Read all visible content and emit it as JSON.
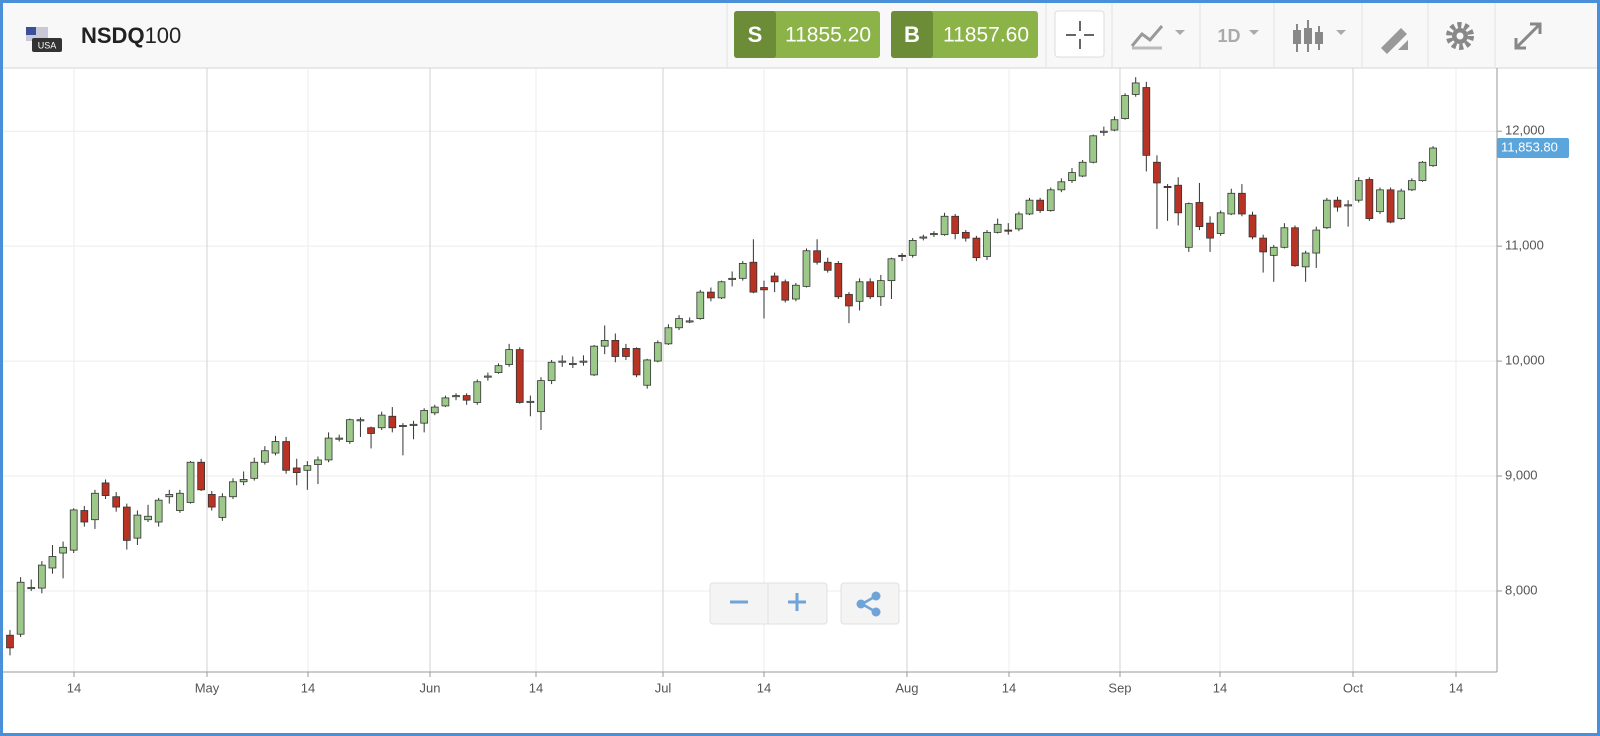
{
  "header": {
    "flag_label": "USA",
    "symbol_prefix": "NSDQ",
    "symbol_suffix": "100",
    "sell": {
      "label": "S",
      "price": "11855.20"
    },
    "buy": {
      "label": "B",
      "price": "11857.60"
    },
    "interval": "1D"
  },
  "chart_data": {
    "type": "candlestick",
    "up_color": "#9cc98a",
    "down_color": "#b83324",
    "grid": true,
    "categories": [
      null,
      null,
      null,
      null,
      null,
      null,
      null,
      null,
      null,
      null,
      null,
      null,
      null,
      null,
      null,
      null,
      null,
      null,
      null,
      null,
      null,
      null,
      null,
      null,
      null,
      null,
      null,
      null,
      null,
      null,
      null,
      null,
      null,
      null,
      null,
      null,
      null,
      null,
      null,
      null,
      null,
      null,
      null,
      null,
      null,
      null,
      null,
      null,
      null,
      null,
      null,
      null,
      null,
      null,
      null,
      null,
      null,
      null,
      null,
      null,
      null,
      null,
      null,
      null,
      null,
      null,
      null,
      null,
      null,
      null,
      null,
      null,
      null,
      null,
      null,
      null,
      null,
      null,
      null,
      null,
      null,
      null,
      null,
      null,
      null,
      null,
      null,
      null,
      null,
      null,
      null,
      null,
      null,
      null,
      null,
      null,
      null,
      null,
      null,
      null,
      null,
      null,
      null,
      null,
      null,
      null,
      null,
      null,
      null,
      null,
      null,
      null,
      null,
      null,
      null,
      null,
      null,
      null,
      null,
      null,
      null,
      null,
      null,
      null,
      null,
      null,
      null,
      null,
      null,
      null,
      null,
      null,
      null,
      null,
      null
    ],
    "open": [
      7615,
      7624,
      8020,
      8025,
      8200,
      8330,
      8355,
      8700,
      8620,
      8940,
      8820,
      8730,
      8460,
      8620,
      8600,
      8820,
      8700,
      8770,
      9120,
      8840,
      8640,
      8820,
      8950,
      8980,
      9120,
      9200,
      9300,
      9070,
      9050,
      9100,
      9140,
      9320,
      9300,
      9480,
      9420,
      9420,
      9520,
      9430,
      9440,
      9460,
      9550,
      9610,
      9690,
      9700,
      9640,
      9860,
      9900,
      9970,
      10100,
      9640,
      9560,
      9830,
      9990,
      9970,
      9990,
      9880,
      10130,
      10180,
      10110,
      10110,
      9790,
      10000,
      10150,
      10290,
      10340,
      10370,
      10600,
      10550,
      10710,
      10720,
      10860,
      10640,
      10740,
      10690,
      10540,
      10650,
      10960,
      10860,
      10850,
      10580,
      10520,
      10690,
      10560,
      10700,
      10920,
      10920,
      11070,
      11100,
      11100,
      11260,
      11120,
      11070,
      10910,
      11120,
      11140,
      11150,
      11280,
      11400,
      11310,
      11490,
      11570,
      11610,
      11730,
      11990,
      12010,
      12110,
      12320,
      12380,
      11730,
      11520,
      11530,
      10990,
      11380,
      11200,
      11110,
      11280,
      11460,
      11270,
      11070,
      10920,
      10990,
      11160,
      10820,
      10940,
      11160,
      11400,
      11350,
      11400,
      11580,
      11300,
      11490,
      11240,
      11490,
      11570,
      11700
    ],
    "high": [
      7660,
      8120,
      8100,
      8260,
      8400,
      8430,
      8720,
      8740,
      8880,
      8970,
      8860,
      8760,
      8700,
      8750,
      8810,
      8880,
      8880,
      9130,
      9150,
      8870,
      8850,
      8980,
      9040,
      9160,
      9260,
      9350,
      9340,
      9150,
      9130,
      9170,
      9380,
      9360,
      9500,
      9510,
      9430,
      9560,
      9600,
      9460,
      9480,
      9590,
      9620,
      9700,
      9720,
      9720,
      9840,
      9900,
      9980,
      10150,
      10120,
      9700,
      9860,
      10010,
      10050,
      10040,
      10050,
      10140,
      10310,
      10240,
      10150,
      10120,
      10020,
      10180,
      10320,
      10400,
      10380,
      10620,
      10640,
      10700,
      10780,
      10870,
      11060,
      10700,
      10770,
      10710,
      10680,
      10980,
      11060,
      10900,
      10870,
      10600,
      10720,
      10720,
      10750,
      10900,
      10940,
      11070,
      11100,
      11130,
      11290,
      11280,
      11140,
      11090,
      11140,
      11240,
      11200,
      11300,
      11420,
      11420,
      11510,
      11590,
      11680,
      11750,
      11970,
      12040,
      12130,
      12330,
      12470,
      12430,
      11790,
      11540,
      11600,
      11380,
      11550,
      11260,
      11310,
      11500,
      11540,
      11300,
      11100,
      11010,
      11200,
      11180,
      10960,
      11170,
      11420,
      11430,
      11400,
      11600,
      11600,
      11510,
      11510,
      11500,
      11590,
      11740,
      11870
    ],
    "low": [
      7440,
      7600,
      8000,
      7980,
      8150,
      8110,
      8330,
      8560,
      8540,
      8800,
      8690,
      8360,
      8400,
      8600,
      8560,
      8760,
      8680,
      8760,
      8870,
      8700,
      8610,
      8800,
      8920,
      8960,
      9100,
      9180,
      9020,
      8920,
      8880,
      8930,
      9120,
      9300,
      9280,
      9340,
      9240,
      9400,
      9380,
      9180,
      9320,
      9380,
      9530,
      9600,
      9660,
      9620,
      9620,
      9830,
      9890,
      9950,
      9630,
      9520,
      9400,
      9800,
      9950,
      9940,
      9960,
      9870,
      10060,
      9990,
      10010,
      9860,
      9760,
      9990,
      10140,
      10270,
      10330,
      10360,
      10520,
      10540,
      10650,
      10700,
      10590,
      10370,
      10600,
      10510,
      10520,
      10640,
      10840,
      10770,
      10540,
      10330,
      10440,
      10540,
      10480,
      10540,
      10870,
      10900,
      11050,
      11080,
      11090,
      11060,
      11040,
      10870,
      10880,
      11110,
      11100,
      11130,
      11270,
      11290,
      11300,
      11470,
      11550,
      11600,
      11720,
      11960,
      12000,
      12100,
      12300,
      11650,
      11150,
      11220,
      11180,
      10950,
      11140,
      10950,
      11090,
      11270,
      11260,
      11060,
      10770,
      10690,
      10980,
      10820,
      10690,
      10810,
      11150,
      11300,
      11170,
      11380,
      11220,
      11280,
      11200,
      11230,
      11480,
      11560,
      11690
    ],
    "close": [
      7505,
      8076,
      8030,
      8225,
      8300,
      8380,
      8705,
      8600,
      8850,
      8830,
      8730,
      8440,
      8660,
      8650,
      8790,
      8840,
      8850,
      9120,
      8880,
      8730,
      8820,
      8950,
      8970,
      9120,
      9220,
      9300,
      9050,
      9030,
      9090,
      9140,
      9330,
      9330,
      9490,
      9490,
      9370,
      9530,
      9420,
      9440,
      9450,
      9570,
      9600,
      9680,
      9700,
      9660,
      9820,
      9870,
      9960,
      10100,
      9640,
      9650,
      9830,
      9990,
      10000,
      9980,
      10000,
      10130,
      10180,
      10040,
      10040,
      9880,
      10010,
      10160,
      10290,
      10370,
      10350,
      10600,
      10550,
      10690,
      10720,
      10850,
      10600,
      10620,
      10690,
      10530,
      10660,
      10960,
      10860,
      10790,
      10560,
      10480,
      10690,
      10560,
      10700,
      10890,
      10910,
      11050,
      11080,
      11110,
      11260,
      11110,
      11070,
      10900,
      11120,
      11190,
      11130,
      11280,
      11400,
      11310,
      11490,
      11560,
      11640,
      11730,
      11960,
      12000,
      12100,
      12310,
      12420,
      11790,
      11550,
      11510,
      11290,
      11370,
      11170,
      11070,
      11290,
      11460,
      11280,
      11080,
      10950,
      10990,
      11160,
      10830,
      10940,
      11140,
      11400,
      11340,
      11360,
      11570,
      11240,
      11490,
      11210,
      11480,
      11570,
      11730,
      11853.8
    ],
    "last_price": {
      "value": 11853.8,
      "label": "11,853.80"
    },
    "xlim": [
      -0.94,
      140.02
    ],
    "xticks": [
      {
        "value": 6.03,
        "label": "14"
      },
      {
        "value": 18.55,
        "label": "May"
      },
      {
        "value": 28.06,
        "label": "14"
      },
      {
        "value": 39.55,
        "label": "Jun"
      },
      {
        "value": 49.53,
        "label": "14"
      },
      {
        "value": 61.49,
        "label": "Jul"
      },
      {
        "value": 71.0,
        "label": "14"
      },
      {
        "value": 84.46,
        "label": "Aug"
      },
      {
        "value": 94.07,
        "label": "14"
      },
      {
        "value": 104.52,
        "label": "Sep"
      },
      {
        "value": 113.94,
        "label": "14"
      },
      {
        "value": 126.46,
        "label": "Oct"
      },
      {
        "value": 136.16,
        "label": "14"
      }
    ],
    "ylim": [
      7295,
      12550
    ],
    "yticks": [
      {
        "value": 8000,
        "label": "8,000"
      },
      {
        "value": 9000,
        "label": "9,000"
      },
      {
        "value": 10000,
        "label": "10,000"
      },
      {
        "value": 11000,
        "label": "11,000"
      },
      {
        "value": 12000,
        "label": "12,000"
      }
    ]
  }
}
